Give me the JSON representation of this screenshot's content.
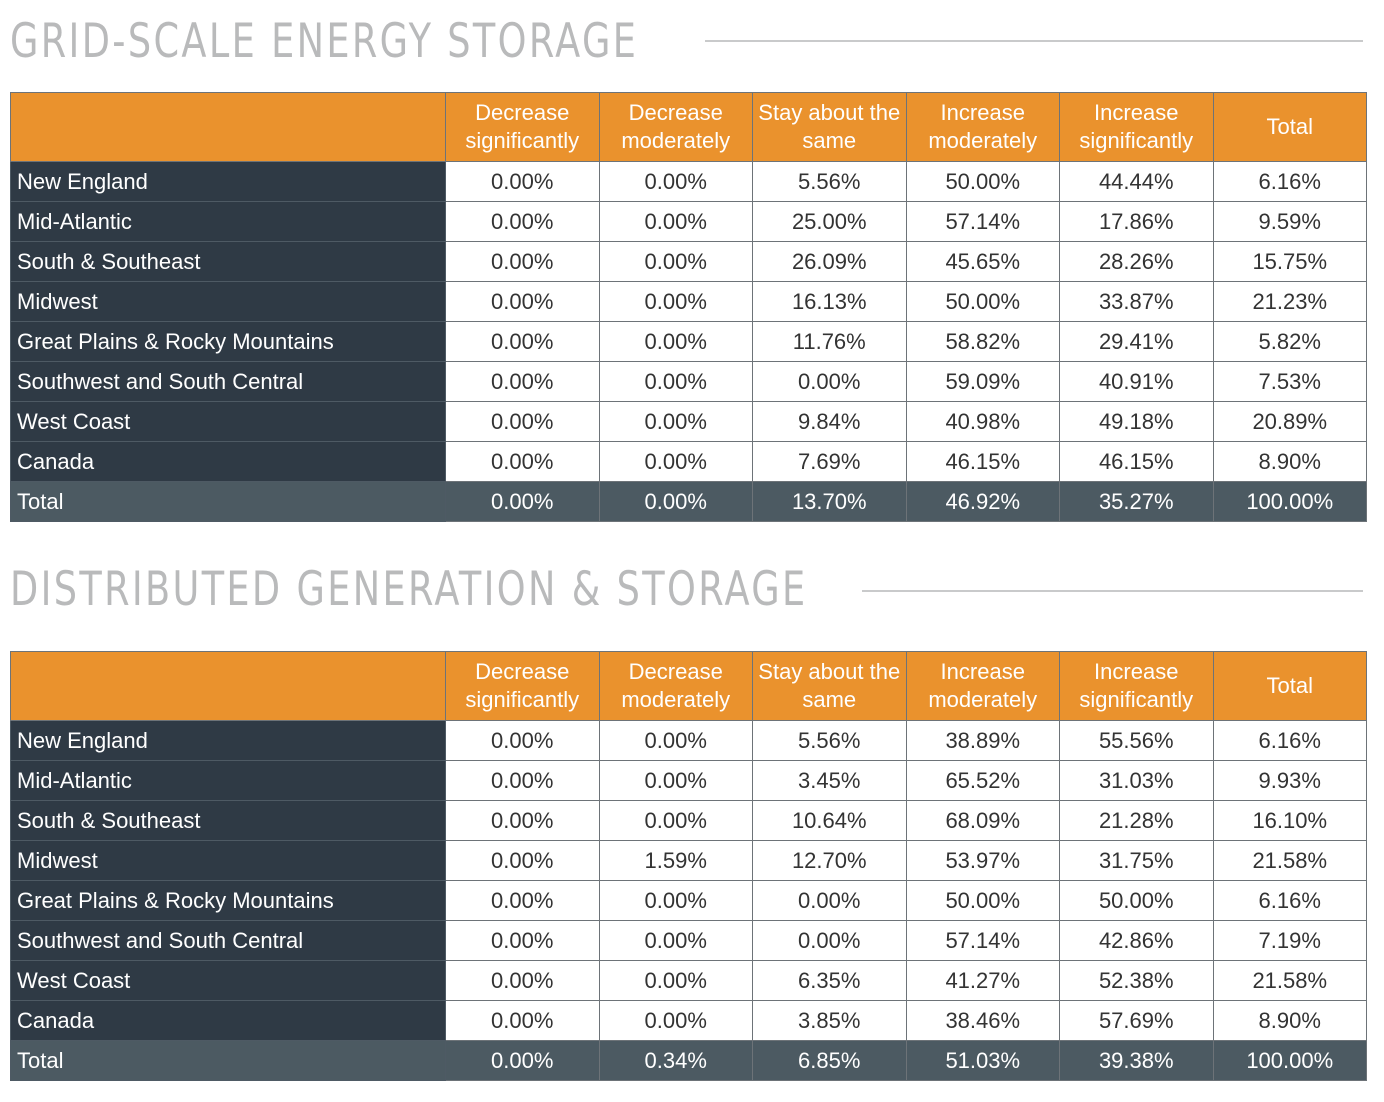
{
  "sections": [
    {
      "title": "GRID-SCALE ENERGY STORAGE",
      "headers": [
        "Decrease significantly",
        "Decrease moderately",
        "Stay about the same",
        "Increase moderately",
        "Increase significantly",
        "Total"
      ],
      "rows": [
        {
          "region": "New England",
          "values": [
            "0.00%",
            "0.00%",
            "5.56%",
            "50.00%",
            "44.44%",
            "6.16%"
          ]
        },
        {
          "region": "Mid-Atlantic",
          "values": [
            "0.00%",
            "0.00%",
            "25.00%",
            "57.14%",
            "17.86%",
            "9.59%"
          ]
        },
        {
          "region": "South & Southeast",
          "values": [
            "0.00%",
            "0.00%",
            "26.09%",
            "45.65%",
            "28.26%",
            "15.75%"
          ]
        },
        {
          "region": "Midwest",
          "values": [
            "0.00%",
            "0.00%",
            "16.13%",
            "50.00%",
            "33.87%",
            "21.23%"
          ]
        },
        {
          "region": "Great Plains & Rocky Mountains",
          "values": [
            "0.00%",
            "0.00%",
            "11.76%",
            "58.82%",
            "29.41%",
            "5.82%"
          ]
        },
        {
          "region": "Southwest and South Central",
          "values": [
            "0.00%",
            "0.00%",
            "0.00%",
            "59.09%",
            "40.91%",
            "7.53%"
          ]
        },
        {
          "region": "West Coast",
          "values": [
            "0.00%",
            "0.00%",
            "9.84%",
            "40.98%",
            "49.18%",
            "20.89%"
          ]
        },
        {
          "region": "Canada",
          "values": [
            "0.00%",
            "0.00%",
            "7.69%",
            "46.15%",
            "46.15%",
            "8.90%"
          ]
        },
        {
          "region": "Total",
          "values": [
            "0.00%",
            "0.00%",
            "13.70%",
            "46.92%",
            "35.27%",
            "100.00%"
          ]
        }
      ]
    },
    {
      "title": "DISTRIBUTED GENERATION & STORAGE",
      "headers": [
        "Decrease significantly",
        "Decrease moderately",
        "Stay about the same",
        "Increase moderately",
        "Increase significantly",
        "Total"
      ],
      "rows": [
        {
          "region": "New England",
          "values": [
            "0.00%",
            "0.00%",
            "5.56%",
            "38.89%",
            "55.56%",
            "6.16%"
          ]
        },
        {
          "region": "Mid-Atlantic",
          "values": [
            "0.00%",
            "0.00%",
            "3.45%",
            "65.52%",
            "31.03%",
            "9.93%"
          ]
        },
        {
          "region": "South & Southeast",
          "values": [
            "0.00%",
            "0.00%",
            "10.64%",
            "68.09%",
            "21.28%",
            "16.10%"
          ]
        },
        {
          "region": "Midwest",
          "values": [
            "0.00%",
            "1.59%",
            "12.70%",
            "53.97%",
            "31.75%",
            "21.58%"
          ]
        },
        {
          "region": "Great Plains & Rocky Mountains",
          "values": [
            "0.00%",
            "0.00%",
            "0.00%",
            "50.00%",
            "50.00%",
            "6.16%"
          ]
        },
        {
          "region": "Southwest and South Central",
          "values": [
            "0.00%",
            "0.00%",
            "0.00%",
            "57.14%",
            "42.86%",
            "7.19%"
          ]
        },
        {
          "region": "West Coast",
          "values": [
            "0.00%",
            "0.00%",
            "6.35%",
            "41.27%",
            "52.38%",
            "21.58%"
          ]
        },
        {
          "region": "Canada",
          "values": [
            "0.00%",
            "0.00%",
            "3.85%",
            "38.46%",
            "57.69%",
            "8.90%"
          ]
        },
        {
          "region": "Total",
          "values": [
            "0.00%",
            "0.34%",
            "6.85%",
            "51.03%",
            "39.38%",
            "100.00%"
          ]
        }
      ]
    }
  ],
  "colors": {
    "header_bg": "#ea922d",
    "label_bg": "#2f3a45",
    "total_bg": "#4c5a62",
    "title_color": "#b9babb"
  }
}
